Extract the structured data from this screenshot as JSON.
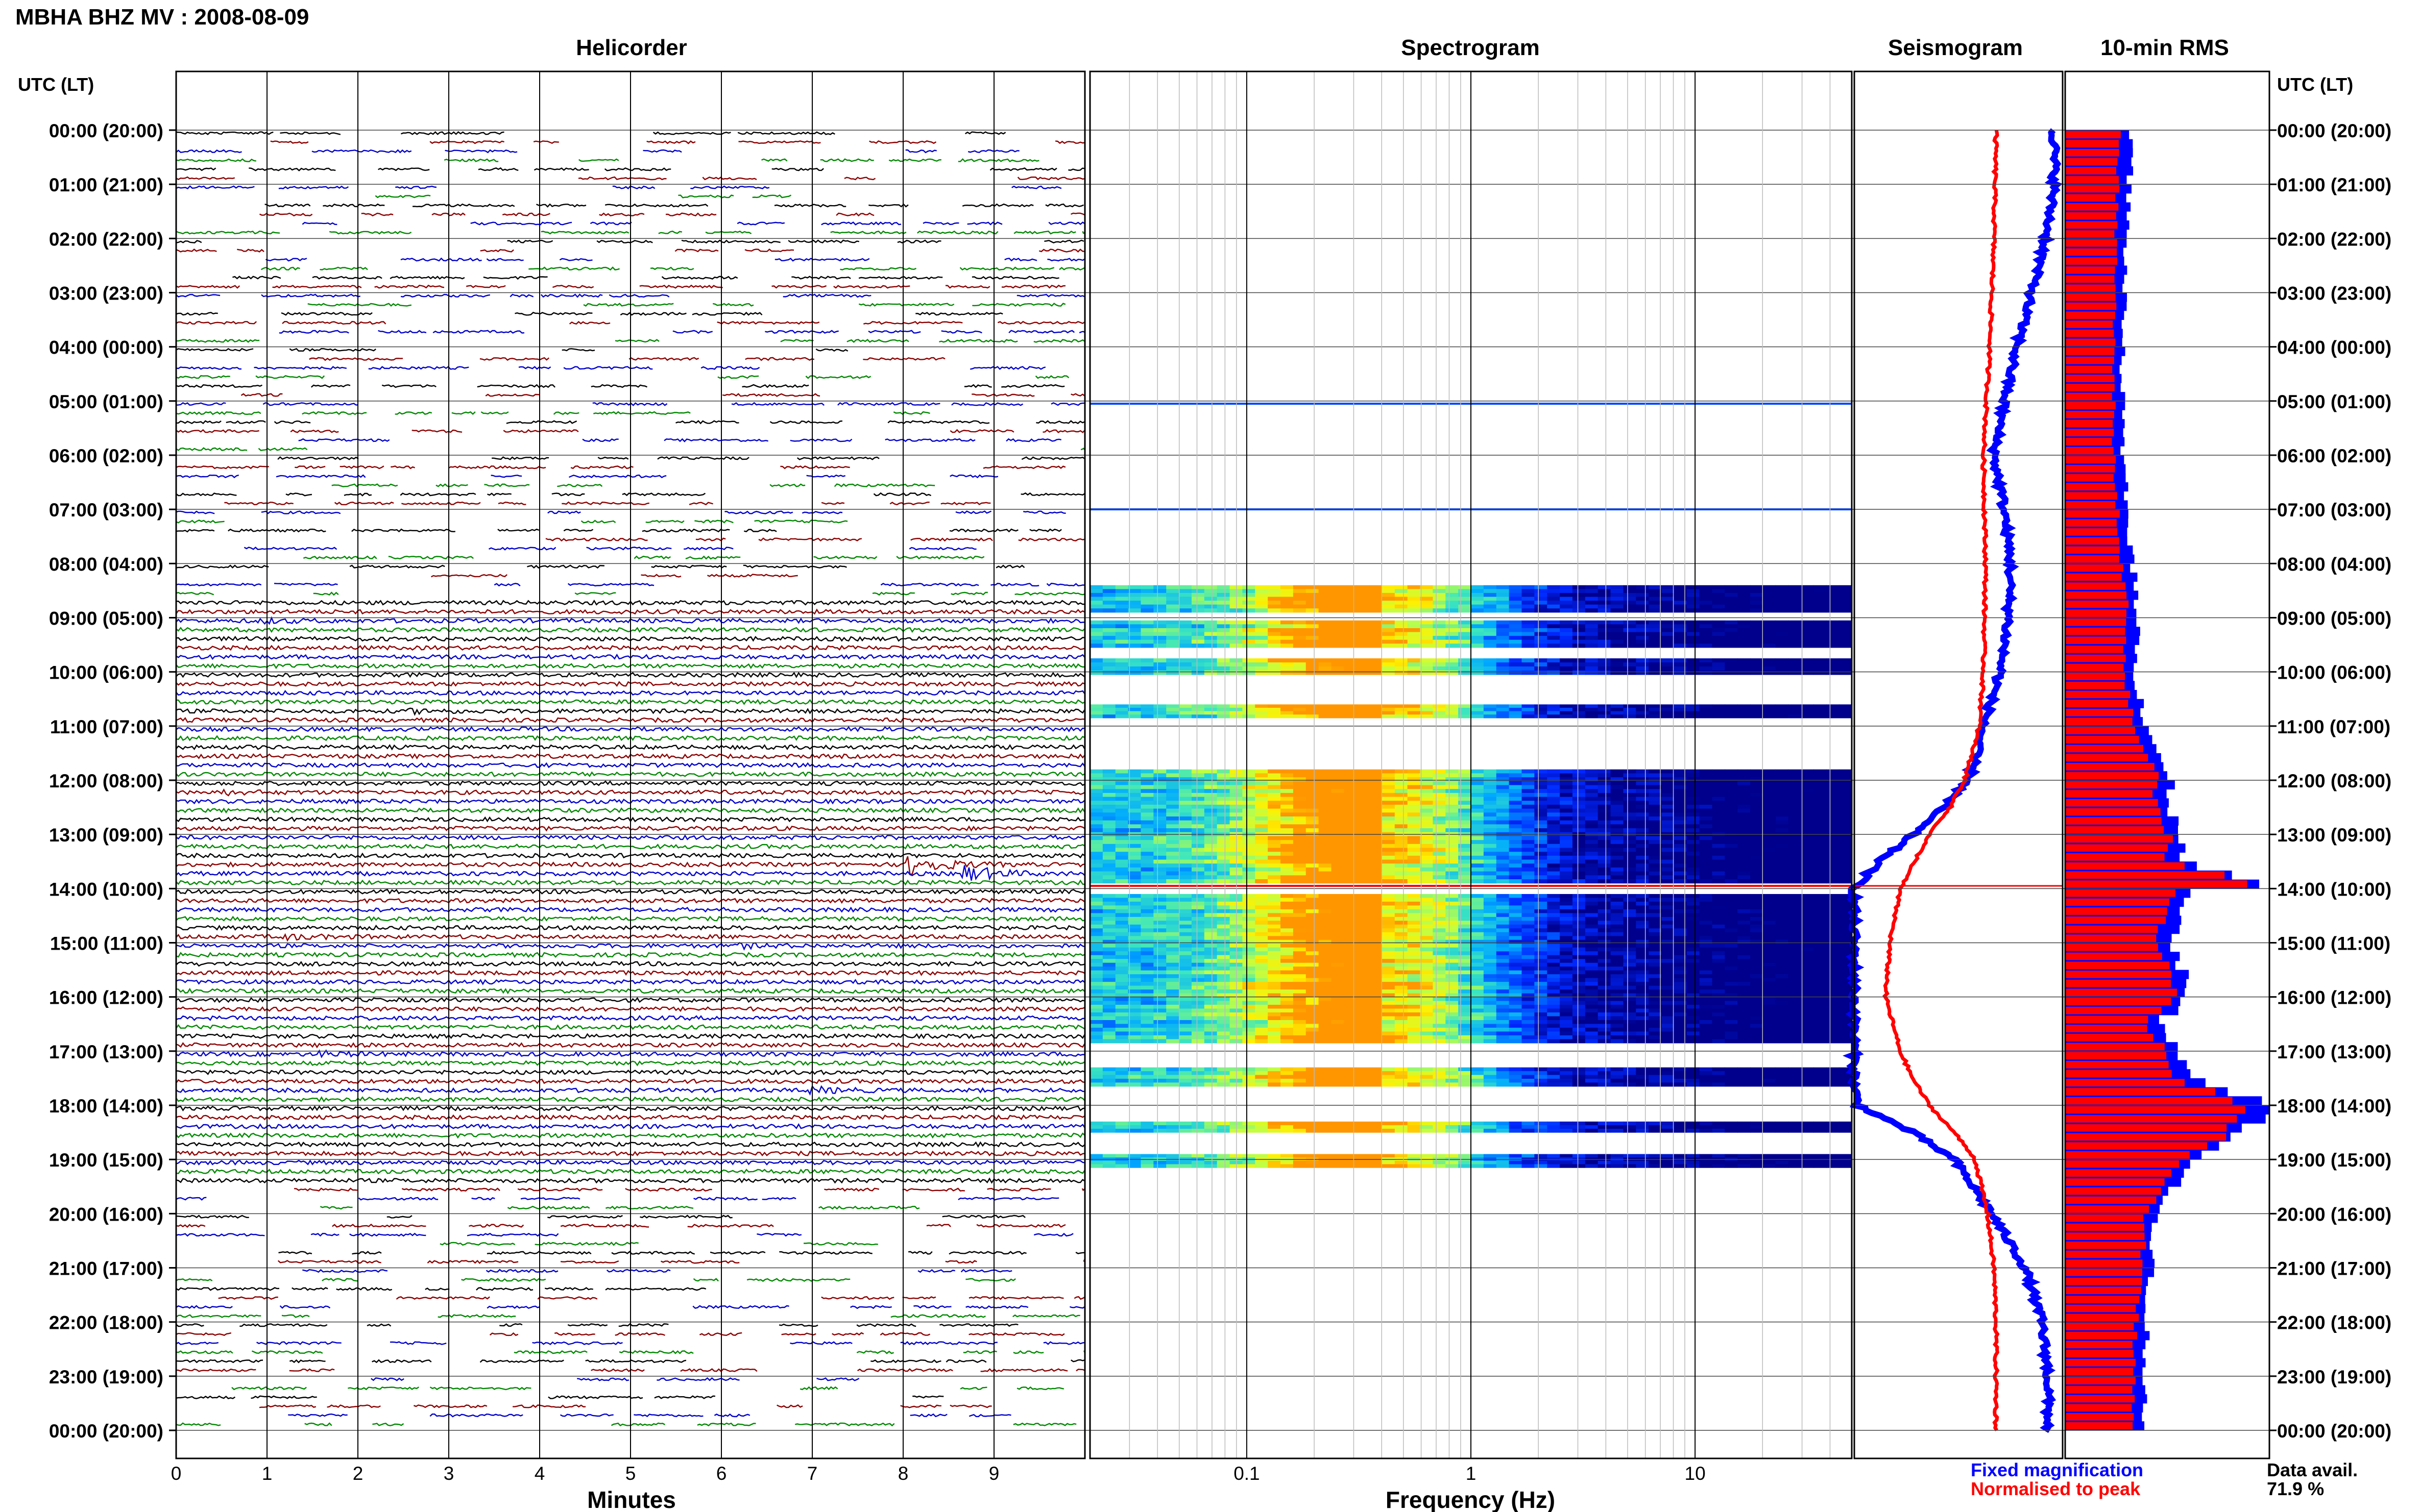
{
  "figure": {
    "title": "MBHA BHZ MV : 2008-08-09",
    "panel_titles": [
      "Helicorder",
      "Spectrogram",
      "Seismogram",
      "10-min RMS"
    ],
    "time_axis_title_left": "UTC (LT)",
    "time_axis_title_right": "UTC (LT)",
    "x_label_helicorder": "Minutes",
    "x_label_spectrogram": "Frequency (Hz)",
    "legend_fixed": "Fixed magnification",
    "legend_normalised": "Normalised to peak",
    "data_avail_label": "Data avail.",
    "data_avail_value": "71.9 %"
  },
  "colors": {
    "trace_cycle": [
      "#000000",
      "#8b0000",
      "#0000cc",
      "#008800"
    ],
    "fixed": "#0000ff",
    "normalised": "#ff0000",
    "rms_bar": "#ff0000",
    "rms_outline": "#0000ff",
    "grid": "#444444"
  },
  "chart_data": {
    "type": "composite",
    "time_ticks": [
      "00:00 (20:00)",
      "01:00 (21:00)",
      "02:00 (22:00)",
      "03:00 (23:00)",
      "04:00 (00:00)",
      "05:00 (01:00)",
      "06:00 (02:00)",
      "07:00 (03:00)",
      "08:00 (04:00)",
      "09:00 (05:00)",
      "10:00 (06:00)",
      "11:00 (07:00)",
      "12:00 (08:00)",
      "13:00 (09:00)",
      "14:00 (10:00)",
      "15:00 (11:00)",
      "16:00 (12:00)",
      "17:00 (13:00)",
      "18:00 (14:00)",
      "19:00 (15:00)",
      "20:00 (16:00)",
      "21:00 (17:00)",
      "22:00 (18:00)",
      "23:00 (19:00)",
      "00:00 (20:00)"
    ],
    "helicorder": {
      "type": "line",
      "xlabel": "Minutes",
      "x_ticks": [
        "0",
        "1",
        "2",
        "3",
        "4",
        "5",
        "6",
        "7",
        "8",
        "9"
      ],
      "xlim": [
        0,
        10
      ],
      "rows": 144,
      "data_hours": [
        [
          8.6,
          19.4
        ]
      ],
      "events": [
        {
          "hour": 8.95,
          "minute": 0.9,
          "amp": 4
        },
        {
          "hour": 10.65,
          "minute": 2.6,
          "amp": 3
        },
        {
          "hour": 12.1,
          "minute": 0.5,
          "amp": 3
        },
        {
          "hour": 13.55,
          "minute": 8.1,
          "amp": 18
        },
        {
          "hour": 13.6,
          "minute": 8.7,
          "amp": 14
        },
        {
          "hour": 14.8,
          "minute": 1.2,
          "amp": 4
        },
        {
          "hour": 15.0,
          "minute": 6.2,
          "amp": 3
        },
        {
          "hour": 17.0,
          "minute": 1.6,
          "amp": 4
        },
        {
          "hour": 17.6,
          "minute": 7.0,
          "amp": 5
        }
      ]
    },
    "spectrogram": {
      "type": "heatmap",
      "xlabel": "Frequency (Hz)",
      "x_scale": "log",
      "xlim": [
        0.02,
        50
      ],
      "x_ticks": [
        "0.1",
        "1",
        "10"
      ],
      "peak_frequency_hz": 0.4,
      "active_blocks_hours": [
        [
          8.4,
          8.9
        ],
        [
          9.05,
          9.55
        ],
        [
          9.75,
          10.05
        ],
        [
          10.6,
          10.85
        ],
        [
          11.8,
          13.9
        ],
        [
          14.1,
          16.85
        ],
        [
          17.3,
          17.65
        ],
        [
          18.3,
          18.5
        ],
        [
          18.9,
          19.15
        ]
      ],
      "line_hours": [
        5.05,
        7.0,
        13.95
      ]
    },
    "seismogram": {
      "type": "line",
      "series": [
        {
          "name": "Fixed magnification",
          "hours": [
            0,
            1,
            2,
            3,
            4,
            5,
            6,
            7,
            8,
            9,
            10,
            11,
            12,
            12.5,
            13,
            13.5,
            14,
            15,
            16,
            17,
            17.7,
            18,
            18.5,
            19,
            20,
            21,
            22,
            23,
            24
          ],
          "values": [
            0.96,
            0.96,
            0.92,
            0.85,
            0.78,
            0.72,
            0.67,
            0.72,
            0.75,
            0.74,
            0.7,
            0.62,
            0.55,
            0.42,
            0.28,
            0.12,
            0.0,
            0.0,
            0.0,
            0.0,
            0.0,
            0.02,
            0.28,
            0.48,
            0.66,
            0.82,
            0.9,
            0.93,
            0.93
          ]
        },
        {
          "name": "Normalised to peak",
          "hours": [
            0,
            2,
            4,
            6,
            8,
            10,
            11,
            12,
            12.5,
            13,
            14,
            15,
            16,
            17,
            17.5,
            18,
            18.5,
            19,
            20,
            21,
            22,
            24
          ],
          "values": [
            0.68,
            0.67,
            0.65,
            0.62,
            0.63,
            0.62,
            0.6,
            0.53,
            0.46,
            0.36,
            0.22,
            0.17,
            0.15,
            0.22,
            0.28,
            0.36,
            0.48,
            0.58,
            0.64,
            0.67,
            0.68,
            0.68
          ]
        }
      ]
    },
    "rms": {
      "type": "bar",
      "series": [
        {
          "name": "Fixed magnification",
          "hours": [
            0,
            2,
            4,
            6,
            8,
            9,
            10,
            11,
            12,
            12.5,
            13,
            13.5,
            13.9,
            14,
            14.5,
            15,
            16,
            16.5,
            17,
            17.5,
            18,
            18.5,
            19,
            19.5,
            20,
            22,
            24
          ],
          "values": [
            0.33,
            0.3,
            0.28,
            0.28,
            0.33,
            0.36,
            0.34,
            0.4,
            0.52,
            0.5,
            0.58,
            0.55,
            1.0,
            0.6,
            0.55,
            0.52,
            0.62,
            0.45,
            0.55,
            0.62,
            1.0,
            0.88,
            0.65,
            0.52,
            0.45,
            0.4,
            0.38
          ]
        },
        {
          "name": "Normalised to peak",
          "hours": [
            0,
            2,
            4,
            6,
            8,
            9,
            10,
            11,
            12,
            12.5,
            13,
            13.5,
            13.9,
            14,
            14.5,
            15,
            16,
            16.5,
            17,
            17.5,
            18,
            18.5,
            19,
            19.5,
            20,
            22,
            24
          ],
          "values": [
            0.27,
            0.25,
            0.24,
            0.24,
            0.28,
            0.31,
            0.29,
            0.34,
            0.46,
            0.44,
            0.52,
            0.49,
            0.98,
            0.54,
            0.49,
            0.46,
            0.56,
            0.4,
            0.49,
            0.56,
            0.88,
            0.82,
            0.6,
            0.47,
            0.4,
            0.35,
            0.33
          ]
        }
      ]
    }
  }
}
